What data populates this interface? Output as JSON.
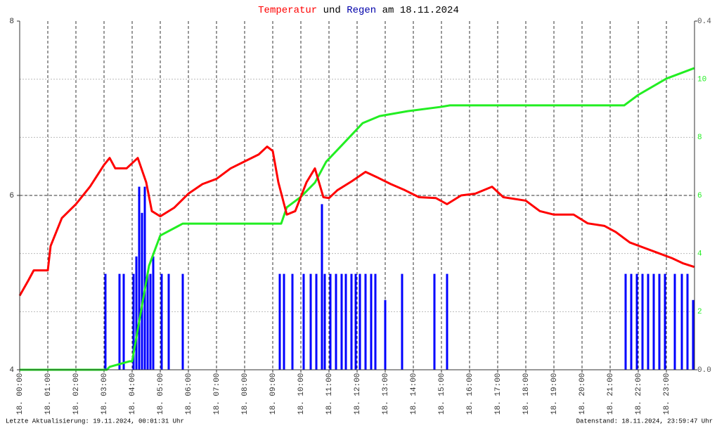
{
  "chart_data": {
    "type": "combo",
    "title": [
      {
        "text": "Temperatur",
        "color": "#ff0000"
      },
      {
        "text": "und",
        "color": "#000000"
      },
      {
        "text": "Regen",
        "color": "#0000aa"
      },
      {
        "text": "am 18.11.2024",
        "color": "#000000"
      }
    ],
    "xlim": [
      0,
      24
    ],
    "xticks": [
      {
        "value": 0,
        "label": "18. 00:00"
      },
      {
        "value": 1,
        "label": "18. 01:00"
      },
      {
        "value": 2,
        "label": "18. 02:00"
      },
      {
        "value": 3,
        "label": "18. 03:00"
      },
      {
        "value": 4,
        "label": "18. 04:00"
      },
      {
        "value": 5,
        "label": "18. 05:00"
      },
      {
        "value": 6,
        "label": "18. 06:00"
      },
      {
        "value": 7,
        "label": "18. 07:00"
      },
      {
        "value": 8,
        "label": "18. 08:00"
      },
      {
        "value": 9,
        "label": "18. 09:00"
      },
      {
        "value": 10,
        "label": "18. 10:00"
      },
      {
        "value": 11,
        "label": "18. 11:00"
      },
      {
        "value": 12,
        "label": "18. 12:00"
      },
      {
        "value": 13,
        "label": "18. 13:00"
      },
      {
        "value": 14,
        "label": "18. 14:00"
      },
      {
        "value": 15,
        "label": "18. 15:00"
      },
      {
        "value": 16,
        "label": "18. 16:00"
      },
      {
        "value": 17,
        "label": "18. 17:00"
      },
      {
        "value": 18,
        "label": "18. 18:00"
      },
      {
        "value": 19,
        "label": "18. 19:00"
      },
      {
        "value": 20,
        "label": "18. 20:00"
      },
      {
        "value": 21,
        "label": "18. 21:00"
      },
      {
        "value": 22,
        "label": "18. 22:00"
      },
      {
        "value": 23,
        "label": "18. 23:00"
      }
    ],
    "ylim": [
      4,
      8
    ],
    "yticks": [
      4,
      6,
      8
    ],
    "y2lim": [
      0,
      0.4
    ],
    "y2ticks": [
      {
        "value": 0,
        "label": "0.0"
      },
      0.4
    ],
    "y3lim": [
      0,
      12
    ],
    "y3ticks": [
      2,
      4,
      6,
      8,
      10
    ],
    "series": [
      {
        "name": "Temperatur",
        "type": "line",
        "color": "#ff0000",
        "axis": "y",
        "x": [
          0,
          0.3,
          0.5,
          1.0,
          1.1,
          1.5,
          2.0,
          2.5,
          3.0,
          3.2,
          3.4,
          3.8,
          4.2,
          4.5,
          4.7,
          5.0,
          5.5,
          6.0,
          6.5,
          7.0,
          7.5,
          8.0,
          8.5,
          8.8,
          9.0,
          9.2,
          9.5,
          9.8,
          10.2,
          10.5,
          10.8,
          11.0,
          11.3,
          11.8,
          12.3,
          12.7,
          13.2,
          13.7,
          14.2,
          14.8,
          15.2,
          15.7,
          16.2,
          16.8,
          17.2,
          18.0,
          18.5,
          19.0,
          19.7,
          20.2,
          20.8,
          21.2,
          21.7,
          22.2,
          22.7,
          23.2,
          23.6,
          23.99
        ],
        "values": [
          4.85,
          5.02,
          5.14,
          5.14,
          5.42,
          5.74,
          5.9,
          6.1,
          6.35,
          6.43,
          6.31,
          6.31,
          6.43,
          6.15,
          5.82,
          5.76,
          5.86,
          6.02,
          6.13,
          6.19,
          6.31,
          6.39,
          6.47,
          6.56,
          6.51,
          6.15,
          5.78,
          5.82,
          6.15,
          6.31,
          5.98,
          5.97,
          6.06,
          6.16,
          6.27,
          6.21,
          6.13,
          6.06,
          5.98,
          5.97,
          5.9,
          6.0,
          6.02,
          6.1,
          5.98,
          5.94,
          5.82,
          5.78,
          5.78,
          5.68,
          5.65,
          5.58,
          5.46,
          5.4,
          5.34,
          5.28,
          5.22,
          5.18
        ]
      },
      {
        "name": "Regen",
        "type": "bar",
        "color": "#0000ff",
        "axis": "y2",
        "x": [
          3.05,
          3.55,
          3.7,
          4.05,
          4.15,
          4.25,
          4.35,
          4.45,
          4.55,
          4.65,
          4.75,
          5.05,
          5.3,
          5.8,
          9.25,
          9.4,
          9.7,
          10.1,
          10.35,
          10.55,
          10.75,
          10.85,
          11.05,
          11.25,
          11.45,
          11.6,
          11.8,
          11.95,
          12.1,
          12.3,
          12.5,
          12.65,
          13.0,
          13.6,
          14.75,
          15.2,
          21.55,
          21.75,
          21.95,
          22.15,
          22.35,
          22.55,
          22.75,
          22.95,
          23.3,
          23.55,
          23.75,
          23.95
        ],
        "values": [
          0.11,
          0.11,
          0.11,
          0.11,
          0.13,
          0.21,
          0.18,
          0.21,
          0.11,
          0.11,
          0.13,
          0.11,
          0.11,
          0.11,
          0.11,
          0.11,
          0.11,
          0.11,
          0.11,
          0.11,
          0.19,
          0.11,
          0.11,
          0.11,
          0.11,
          0.11,
          0.11,
          0.11,
          0.11,
          0.11,
          0.11,
          0.11,
          0.08,
          0.11,
          0.11,
          0.11,
          0.11,
          0.11,
          0.11,
          0.11,
          0.11,
          0.11,
          0.11,
          0.11,
          0.11,
          0.11,
          0.11,
          0.08
        ]
      },
      {
        "type": "line",
        "color": "#22ee22",
        "axis": "y3",
        "x": [
          0,
          3.1,
          3.2,
          3.9,
          4.0,
          4.6,
          5.0,
          5.8,
          9.3,
          9.5,
          10.0,
          10.5,
          10.9,
          11.5,
          12.2,
          12.8,
          13.8,
          15.0,
          15.3,
          21.5,
          22.0,
          23.0,
          23.99
        ],
        "values": [
          0,
          0,
          0.1,
          0.29,
          0.29,
          3.58,
          4.62,
          5.03,
          5.03,
          5.59,
          5.95,
          6.44,
          7.16,
          7.77,
          8.49,
          8.73,
          8.9,
          9.05,
          9.1,
          9.1,
          9.46,
          10.02,
          10.38
        ]
      }
    ]
  },
  "footer": {
    "left": "Letzte Aktualisierung: 19.11.2024, 00:01:31 Uhr",
    "right": "Datenstand: 18.11.2024, 23:59:47 Uhr"
  }
}
